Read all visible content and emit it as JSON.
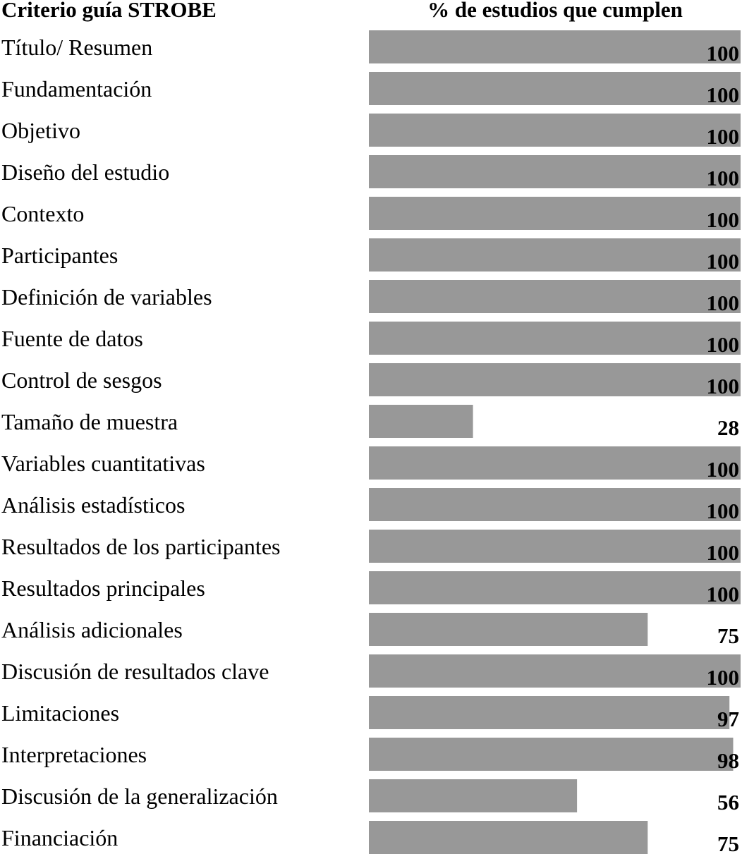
{
  "header": {
    "criterion": "Criterio guía STROBE",
    "percent": "% de estudios que cumplen"
  },
  "chart_data": {
    "type": "bar",
    "orientation": "horizontal",
    "xlim": [
      0,
      100
    ],
    "grid": false,
    "legend": "none",
    "bar_color": "#989898",
    "categories": [
      "Título/ Resumen",
      "Fundamentación",
      "Objetivo",
      "Diseño del estudio",
      "Contexto",
      "Participantes",
      "Definición de variables",
      "Fuente de datos",
      "Control de sesgos",
      "Tamaño de muestra",
      "Variables cuantitativas",
      "Análisis estadísticos",
      "Resultados de los participantes",
      "Resultados principales",
      "Análisis adicionales",
      "Discusión de resultados clave",
      "Limitaciones",
      "Interpretaciones",
      "Discusión de la generalización",
      "Financiación"
    ],
    "values": [
      100,
      100,
      100,
      100,
      100,
      100,
      100,
      100,
      100,
      28,
      100,
      100,
      100,
      100,
      75,
      100,
      97,
      98,
      56,
      75
    ]
  }
}
